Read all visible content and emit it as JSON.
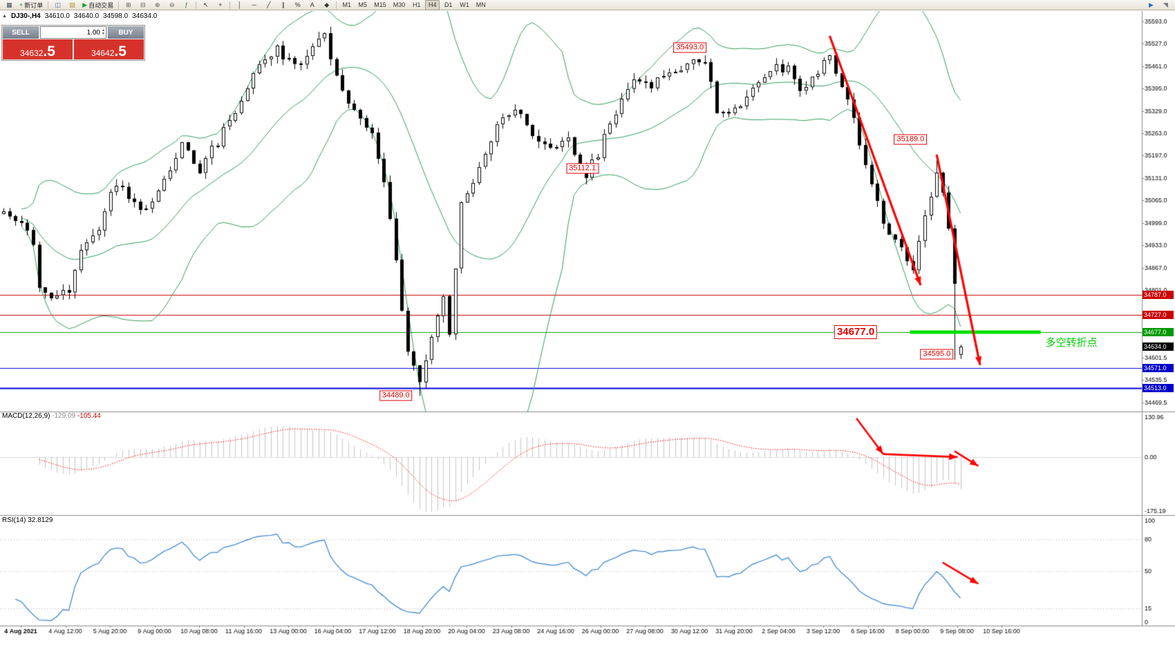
{
  "toolbar": {
    "left_items": [
      {
        "name": "chart-window-icon",
        "glyph": "▦",
        "color": "#3b4a5a"
      },
      {
        "name": "new-order-button",
        "glyph": "+",
        "color": "#1a9c2e",
        "label": "新订单"
      },
      {
        "sep": true
      },
      {
        "name": "charts-grid-button",
        "glyph": "◫",
        "color": "#4a6da0"
      },
      {
        "name": "profiles-button",
        "glyph": "▤",
        "color": "#b0882f"
      },
      {
        "name": "auto-trading-button",
        "glyph": "▶",
        "color": "#1a9c2e",
        "label": "自动交易"
      },
      {
        "sep": true
      },
      {
        "name": "new-chart-button",
        "glyph": "⊞",
        "color": "#555555"
      },
      {
        "name": "tile-windows-button",
        "glyph": "⊟",
        "color": "#555555"
      },
      {
        "name": "zoom-in-button",
        "glyph": "⊕",
        "color": "#555555"
      },
      {
        "name": "zoom-out-button",
        "glyph": "⊖",
        "color": "#555555"
      },
      {
        "name": "indicators-button",
        "glyph": "ƒ",
        "color": "#2d7d46"
      },
      {
        "sep": true
      },
      {
        "name": "cursor-button",
        "glyph": "↖",
        "color": "#333333"
      },
      {
        "name": "crosshair-button",
        "glyph": "+",
        "color": "#333333"
      },
      {
        "sep": true
      },
      {
        "name": "vertical-line-button",
        "glyph": "│",
        "color": "#333333"
      },
      {
        "name": "horizontal-line-button",
        "glyph": "─",
        "color": "#333333"
      },
      {
        "name": "trendline-button",
        "glyph": "╱",
        "color": "#333333"
      },
      {
        "name": "channel-button",
        "glyph": "∥",
        "color": "#333333"
      },
      {
        "name": "fibonacci-button",
        "glyph": "%",
        "color": "#333333"
      },
      {
        "name": "text-button",
        "glyph": "A",
        "color": "#333333"
      },
      {
        "name": "shapes-button",
        "glyph": "◆",
        "color": "#333333"
      },
      {
        "sep": true
      }
    ],
    "timeframes": [
      "M1",
      "M5",
      "M15",
      "M30",
      "H1",
      "H4",
      "D1",
      "W1",
      "MN"
    ],
    "active_timeframe": "H4",
    "right_items": [
      {
        "name": "scroll-to-end-button",
        "glyph": "▶",
        "color": "#2d6fc0"
      },
      {
        "name": "chart-shift-button",
        "glyph": "◥",
        "color": "#777777"
      }
    ]
  },
  "symbol_info": {
    "marker": "▲",
    "symbol": "DJ30-,H4",
    "open": "34610.0",
    "high": "34640.0",
    "low": "34598.0",
    "close": "34634.0"
  },
  "trade_panel": {
    "sell_label": "SELL",
    "buy_label": "BUY",
    "volume": "1.00",
    "spin_up": "▴",
    "spin_down": "▾",
    "sell_price_main": "34632",
    "sell_price_frac": ".5",
    "buy_price_main": "34642",
    "buy_price_frac": ".5",
    "price_box_color": "#d6322b"
  },
  "price_axis": {
    "ticks": [
      "35593.0",
      "35527.0",
      "35461.0",
      "35395.0",
      "35329.0",
      "35263.0",
      "35197.0",
      "35131.0",
      "35065.0",
      "34999.0",
      "34933.0",
      "34867.0",
      "34801.0",
      "34601.5",
      "34535.5",
      "34469.5"
    ],
    "tags": [
      {
        "label": "34787.0",
        "value": 34787.0,
        "color": "#cc0000"
      },
      {
        "label": "34727.0",
        "value": 34727.0,
        "color": "#cc0000"
      },
      {
        "label": "34677.0",
        "value": 34677.0,
        "color": "#009900"
      },
      {
        "label": "34634.0",
        "value": 34634.0,
        "color": "#000000"
      },
      {
        "label": "34571.0",
        "value": 34571.0,
        "color": "#0000cc"
      },
      {
        "label": "34513.0",
        "value": 34513.0,
        "color": "#0000cc"
      }
    ]
  },
  "time_axis": {
    "labels": [
      "4 Aug 2021",
      "4 Aug 12:00",
      "5 Aug 20:00",
      "9 Aug 00:00",
      "10 Aug 08:00",
      "11 Aug 16:00",
      "13 Aug 00:00",
      "16 Aug 04:00",
      "17 Aug 12:00",
      "18 Aug 20:00",
      "20 Aug 04:00",
      "23 Aug 08:00",
      "24 Aug 16:00",
      "26 Aug 00:00",
      "27 Aug 08:00",
      "30 Aug 12:00",
      "31 Aug 20:00",
      "2 Sep 04:00",
      "3 Sep 12:00",
      "6 Sep 16:00",
      "8 Sep 00:00",
      "9 Sep 08:00",
      "10 Sep 16:00"
    ]
  },
  "macd_panel": {
    "name": "MACD(12,26,9)",
    "value1": "-129.09",
    "value2": "-105.44",
    "scale_top": "130.96",
    "scale_zero": "0.00",
    "scale_bottom": "-175.19"
  },
  "rsi_panel": {
    "name": "RSI(14)",
    "value": "32.8129",
    "scale": [
      100,
      80,
      50,
      15,
      0
    ],
    "levels": [
      80,
      50,
      15
    ]
  },
  "hlines": [
    {
      "price": 34787.0,
      "color": "#cc0000",
      "width": 1
    },
    {
      "price": 34727.0,
      "color": "#cc0000",
      "width": 1
    },
    {
      "price": 34677.0,
      "color": "#00a000",
      "width": 1
    },
    {
      "price": 34571.0,
      "color": "#0000dd",
      "width": 1
    },
    {
      "price": 34513.0,
      "color": "#0000dd",
      "width": 2
    }
  ],
  "annotations": {
    "labels": [
      {
        "text": "35493.0",
        "xi": 115.5,
        "price": 35515,
        "align": "center",
        "big": false
      },
      {
        "text": "35189.0",
        "xi": 152.6,
        "price": 35245,
        "align": "center",
        "big": false
      },
      {
        "text": "35112.1",
        "xi": 97.4,
        "price": 35160,
        "align": "center",
        "big": false
      },
      {
        "text": "34677.0",
        "xi": 147.0,
        "price": 34677,
        "align": "right",
        "big": true
      },
      {
        "text": "34595.0",
        "xi": 159.8,
        "price": 34612,
        "align": "right",
        "big": false
      },
      {
        "text": "34489.0",
        "xi": 68.8,
        "price": 34489,
        "align": "right",
        "big": false
      }
    ],
    "cn_note": {
      "text": "多空转折点",
      "xi": 175.3,
      "price": 34650,
      "color": "#00cc00"
    },
    "green_segment": {
      "xi1": 152.5,
      "xi2": 174.5,
      "price": 34677,
      "color": "#00e000",
      "width": 5
    },
    "arrows_main": [
      {
        "x1i": 139,
        "p1": 35550,
        "x2i": 154.3,
        "p2": 34815
      },
      {
        "x1i": 157,
        "p1": 35200,
        "x2i": 164.3,
        "p2": 34580
      }
    ],
    "arrows_macd": [
      {
        "x1i": 143.5,
        "f1": 0.04,
        "x2i": 148,
        "f2": 0.4,
        "head": true
      },
      {
        "x1i": 148,
        "f1": 0.4,
        "x2i": 160.5,
        "f2": 0.43,
        "head": true
      },
      {
        "x1i": 160,
        "f1": 0.37,
        "x2i": 164,
        "f2": 0.52,
        "head": true
      }
    ],
    "arrow_rsi": {
      "x1i": 158,
      "v1": 58,
      "x2i": 164,
      "v2": 38
    },
    "arrow_color": "#ff0000"
  },
  "chart_data": {
    "type": "candlestick",
    "symbol": "DJ30-",
    "timeframe": "H4",
    "last_ohlc": {
      "open": 34610.0,
      "high": 34640.0,
      "low": 34598.0,
      "close": 34634.0
    },
    "bid": "34632.5",
    "ask": "34642.5",
    "visible_price_range": [
      34455,
      35615
    ],
    "count": 162,
    "anchors": [
      [
        0,
        35030
      ],
      [
        3,
        34985
      ],
      [
        5,
        34940
      ],
      [
        6,
        34810
      ],
      [
        8,
        34775
      ],
      [
        11,
        34790
      ],
      [
        13,
        34920
      ],
      [
        16,
        34990
      ],
      [
        19,
        35125
      ],
      [
        21,
        35070
      ],
      [
        24,
        35030
      ],
      [
        27,
        35120
      ],
      [
        30,
        35230
      ],
      [
        33,
        35150
      ],
      [
        36,
        35240
      ],
      [
        40,
        35370
      ],
      [
        43,
        35460
      ],
      [
        46,
        35510
      ],
      [
        49,
        35465
      ],
      [
        51,
        35490
      ],
      [
        54,
        35555
      ],
      [
        56,
        35430
      ],
      [
        59,
        35330
      ],
      [
        62,
        35250
      ],
      [
        64,
        35120
      ],
      [
        66,
        34890
      ],
      [
        68,
        34610
      ],
      [
        70,
        34530
      ],
      [
        72,
        34660
      ],
      [
        74,
        34780
      ],
      [
        75,
        34660
      ],
      [
        77,
        35060
      ],
      [
        80,
        35160
      ],
      [
        83,
        35290
      ],
      [
        86,
        35340
      ],
      [
        89,
        35260
      ],
      [
        92,
        35210
      ],
      [
        95,
        35250
      ],
      [
        98,
        35140
      ],
      [
        100,
        35210
      ],
      [
        103,
        35330
      ],
      [
        106,
        35420
      ],
      [
        109,
        35400
      ],
      [
        112,
        35440
      ],
      [
        115,
        35470
      ],
      [
        118,
        35480
      ],
      [
        120,
        35340
      ],
      [
        123,
        35320
      ],
      [
        126,
        35390
      ],
      [
        129,
        35450
      ],
      [
        132,
        35460
      ],
      [
        134,
        35380
      ],
      [
        137,
        35450
      ],
      [
        139,
        35485
      ],
      [
        142,
        35380
      ],
      [
        145,
        35160
      ],
      [
        148,
        35000
      ],
      [
        151,
        34920
      ],
      [
        153,
        34860
      ],
      [
        155,
        35010
      ],
      [
        157,
        35150
      ],
      [
        158,
        35090
      ],
      [
        159,
        34990
      ],
      [
        160,
        34830
      ],
      [
        161,
        34634
      ]
    ],
    "special_candles": {
      "70": {
        "low": 34489.0
      },
      "98": {
        "low": 35112.1
      },
      "118": {
        "high": 35493.0
      },
      "157": {
        "high": 35189.0
      },
      "160": {
        "low": 34595.0
      },
      "161": {
        "open": 34610.0,
        "high": 34640.0,
        "low": 34598.0,
        "close": 34634.0
      }
    },
    "indicators": {
      "bollinger": {
        "period": 20,
        "deviation": 2,
        "color": "#2e9e5b"
      },
      "macd": {
        "fast": 12,
        "slow": 26,
        "signal": 9,
        "current_macd": -129.09,
        "current_signal": -105.44
      },
      "rsi": {
        "period": 14,
        "current": 32.8129
      }
    },
    "key_levels": {
      "resistance": [
        34787.0,
        34727.0
      ],
      "pivot": 34677.0,
      "support": [
        34571.0,
        34513.0
      ],
      "swing_high": 35493.0,
      "lower_high": 35189.0,
      "swing_low": 34489.0,
      "recent_low": 34595.0
    }
  },
  "colors": {
    "bull": "#ffffff",
    "bear": "#000000",
    "outline": "#000000",
    "bollinger": "#2e9e5b",
    "macd_hist": "#c4c4c4",
    "macd_signal": "#ff0000",
    "rsi_line": "#4a8fd4",
    "axis_text": "#000000",
    "panel_sep": "#8a8a8a"
  }
}
